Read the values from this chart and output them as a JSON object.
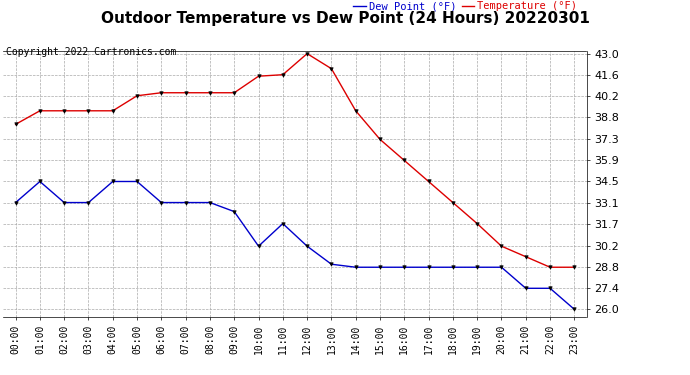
{
  "title": "Outdoor Temperature vs Dew Point (24 Hours) 20220301",
  "copyright": "Copyright 2022 Cartronics.com",
  "legend_dew": "Dew Point (°F)",
  "legend_temp": "Temperature (°F)",
  "x_labels": [
    "00:00",
    "01:00",
    "02:00",
    "03:00",
    "04:00",
    "05:00",
    "06:00",
    "07:00",
    "08:00",
    "09:00",
    "10:00",
    "11:00",
    "12:00",
    "13:00",
    "14:00",
    "15:00",
    "16:00",
    "17:00",
    "18:00",
    "19:00",
    "20:00",
    "21:00",
    "22:00",
    "23:00"
  ],
  "temperature": [
    38.3,
    39.2,
    39.2,
    39.2,
    39.2,
    40.2,
    40.4,
    40.4,
    40.4,
    40.4,
    41.5,
    41.6,
    43.0,
    42.0,
    39.2,
    37.3,
    35.9,
    34.5,
    33.1,
    31.7,
    30.2,
    29.5,
    28.8,
    28.8
  ],
  "dew_point": [
    33.1,
    34.5,
    33.1,
    33.1,
    34.5,
    34.5,
    33.1,
    33.1,
    33.1,
    32.5,
    30.2,
    31.7,
    30.2,
    29.0,
    28.8,
    28.8,
    28.8,
    28.8,
    28.8,
    28.8,
    28.8,
    27.4,
    27.4,
    26.0
  ],
  "temp_color": "#dd0000",
  "dew_color": "#0000cc",
  "marker_color": "#000000",
  "bg_color": "#ffffff",
  "grid_color": "#aaaaaa",
  "ylim_min": 25.5,
  "ylim_max": 43.2,
  "yticks": [
    26.0,
    27.4,
    28.8,
    30.2,
    31.7,
    33.1,
    34.5,
    35.9,
    37.3,
    38.8,
    40.2,
    41.6,
    43.0
  ],
  "title_fontsize": 11,
  "axis_fontsize": 7,
  "copyright_fontsize": 7,
  "legend_fontsize": 7.5
}
